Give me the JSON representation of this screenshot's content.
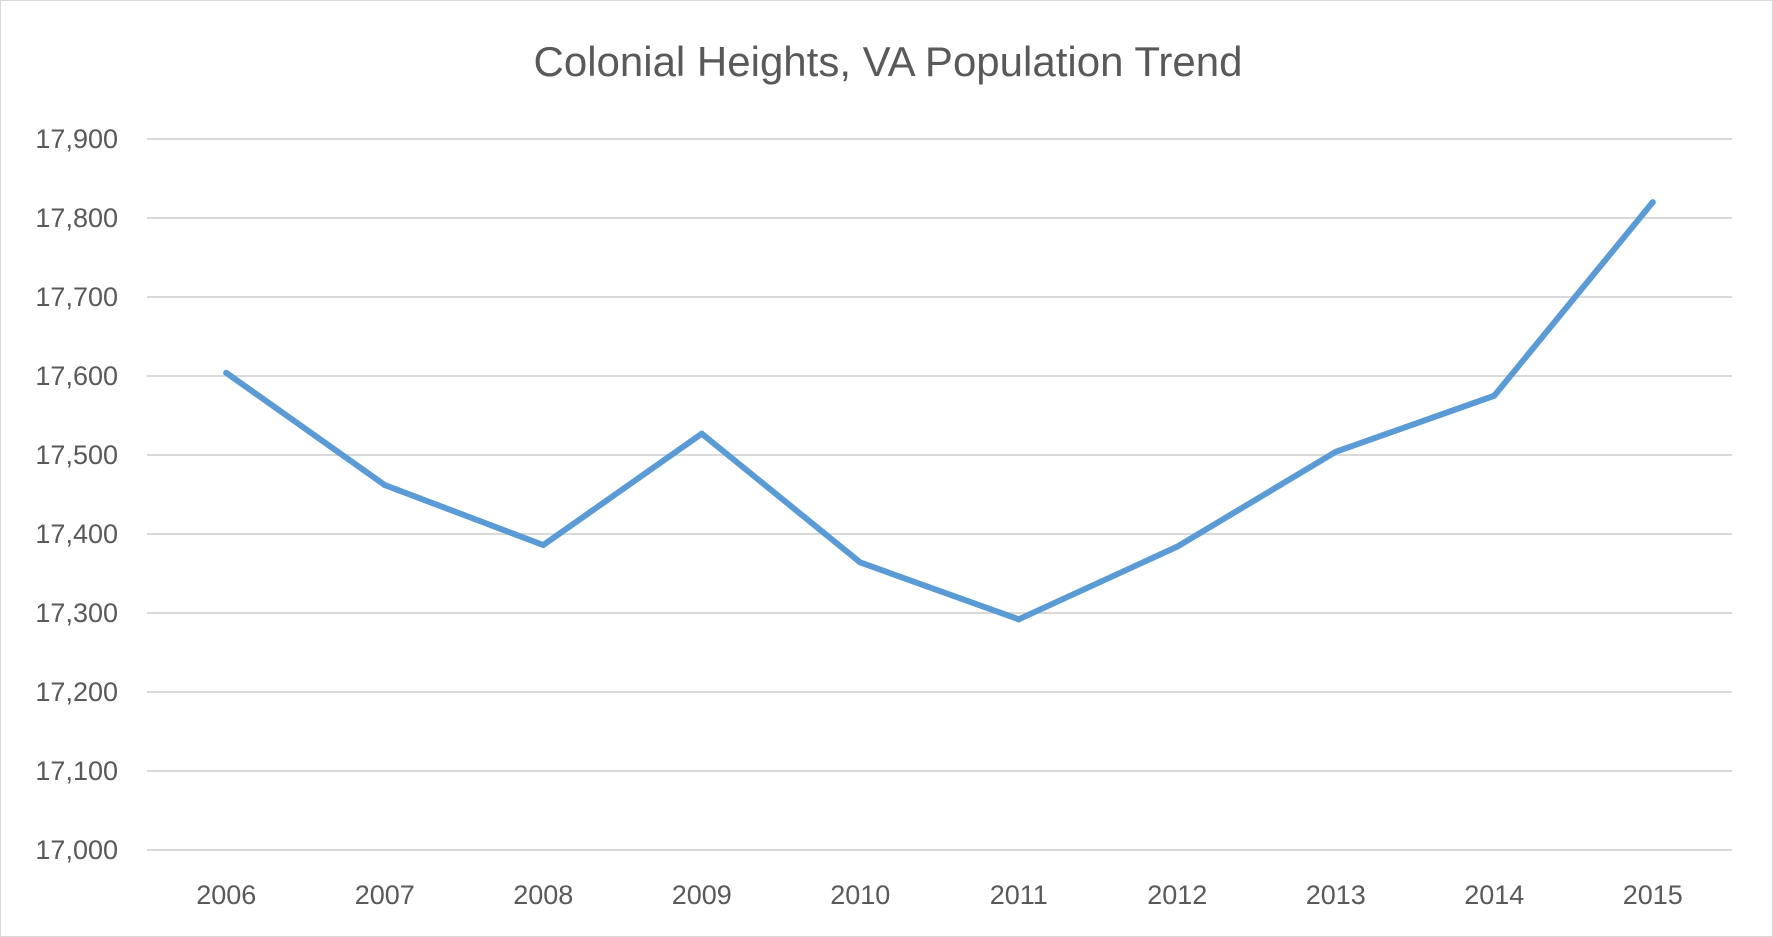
{
  "chart_data": {
    "type": "line",
    "title": "Colonial Heights, VA Population Trend",
    "xlabel": "",
    "ylabel": "",
    "categories": [
      "2006",
      "2007",
      "2008",
      "2009",
      "2010",
      "2011",
      "2012",
      "2013",
      "2014",
      "2015"
    ],
    "series": [
      {
        "values": [
          17604,
          17462,
          17386,
          17527,
          17364,
          17292,
          17384,
          17504,
          17575,
          17820
        ]
      }
    ],
    "ylim": [
      17000,
      17900
    ],
    "yticks": [
      17000,
      17100,
      17200,
      17300,
      17400,
      17500,
      17600,
      17700,
      17800,
      17900
    ],
    "ytick_labels": [
      "17,000",
      "17,100",
      "17,200",
      "17,300",
      "17,400",
      "17,500",
      "17,600",
      "17,700",
      "17,800",
      "17,900"
    ],
    "grid": true,
    "legend": "none",
    "colors": {
      "line": "#5b9bd5",
      "grid": "#d9d9d9",
      "text": "#595959"
    }
  }
}
